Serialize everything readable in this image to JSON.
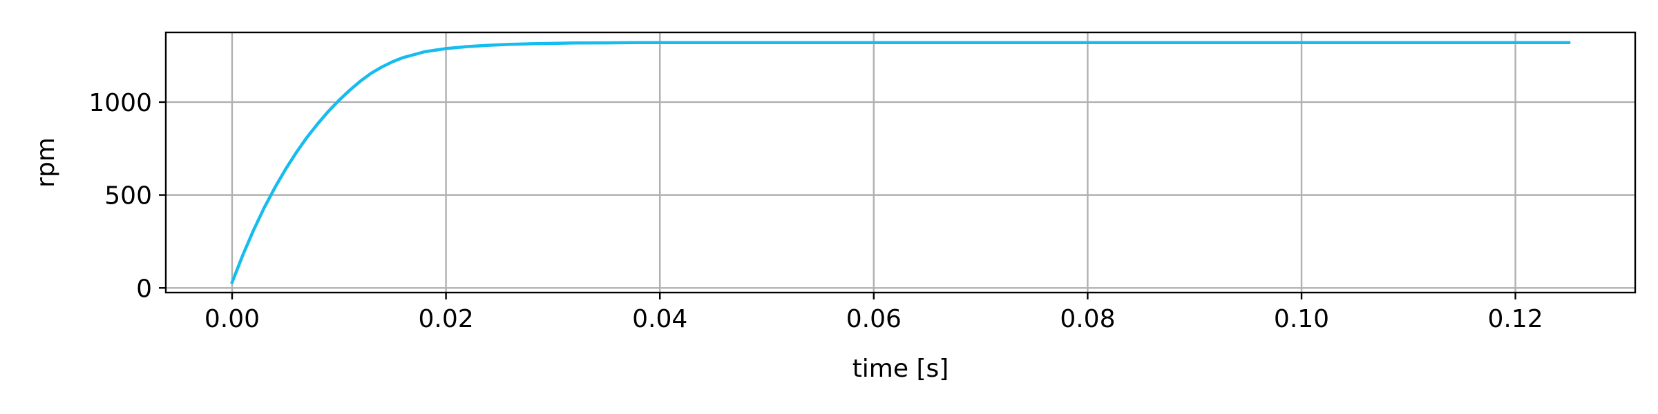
{
  "chart_data": {
    "type": "line",
    "title": "",
    "xlabel": "time [s]",
    "ylabel": "rpm",
    "xlim": [
      -0.0062,
      0.1312
    ],
    "ylim": [
      -25,
      1375
    ],
    "xticks": [
      0.0,
      0.02,
      0.04,
      0.06,
      0.08,
      0.1,
      0.12
    ],
    "xtick_labels": [
      "0.00",
      "0.02",
      "0.04",
      "0.06",
      "0.08",
      "0.10",
      "0.12"
    ],
    "yticks": [
      0,
      500,
      1000
    ],
    "ytick_labels": [
      "0",
      "500",
      "1000"
    ],
    "grid": true,
    "legend": "none",
    "line_color": "#17bcef",
    "grid_color": "#b0b0b0",
    "series": [
      {
        "color": "#17bcef",
        "x": [
          0.0,
          0.001,
          0.002,
          0.003,
          0.004,
          0.005,
          0.006,
          0.007,
          0.008,
          0.009,
          0.01,
          0.011,
          0.012,
          0.013,
          0.014,
          0.015,
          0.016,
          0.018,
          0.02,
          0.022,
          0.024,
          0.026,
          0.028,
          0.03,
          0.032,
          0.035,
          0.038,
          0.04,
          0.045,
          0.05,
          0.055,
          0.06,
          0.07,
          0.08,
          0.09,
          0.1,
          0.11,
          0.12,
          0.125
        ],
        "y": [
          30,
          177,
          310,
          431,
          540,
          639,
          729,
          810,
          883,
          950,
          1010,
          1064,
          1113,
          1155,
          1189,
          1217,
          1240,
          1271,
          1288,
          1299,
          1306,
          1311,
          1314,
          1316,
          1318,
          1319,
          1320,
          1320,
          1320,
          1320,
          1320,
          1320,
          1320,
          1320,
          1320,
          1320,
          1320,
          1320,
          1320
        ]
      }
    ]
  }
}
